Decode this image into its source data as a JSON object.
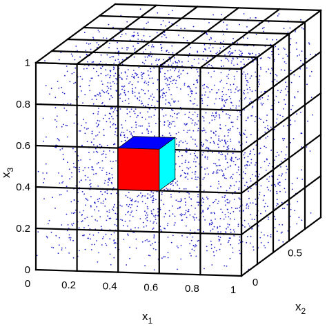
{
  "chart_data": {
    "type": "scatter",
    "dimensions": 3,
    "title": "",
    "axes": {
      "x1": {
        "label": "x",
        "subscript": "1",
        "range": [
          0,
          1
        ],
        "ticks": [
          "0",
          "0.2",
          "0.4",
          "0.6",
          "0.8",
          "1"
        ]
      },
      "x2": {
        "label": "x",
        "subscript": "2",
        "range": [
          0,
          1
        ],
        "ticks": [
          "0",
          "0.5"
        ]
      },
      "x3": {
        "label": "x",
        "subscript": "3",
        "range": [
          0,
          1
        ],
        "ticks": [
          "0",
          "0.2",
          "0.4",
          "0.6",
          "0.8",
          "1"
        ]
      }
    },
    "grid": {
      "on": true,
      "divisions_per_axis": 5
    },
    "points": {
      "distribution": "uniform",
      "count": 2500,
      "color": "#1f1fc8"
    },
    "highlighted_cell": {
      "x1": [
        0.4,
        0.6
      ],
      "x2": [
        0.0,
        0.2
      ],
      "x3": [
        0.4,
        0.6
      ],
      "face_colors": {
        "front": "#ff0000",
        "top": "#0000ff",
        "side": "#00ffff"
      }
    },
    "colors": {
      "grid_line": "#000000",
      "background": "#ffffff"
    }
  }
}
